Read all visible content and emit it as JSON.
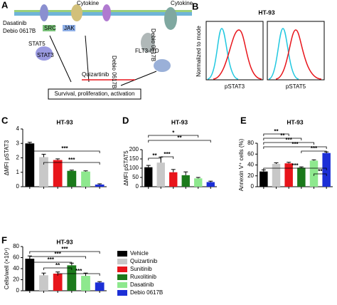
{
  "panel_a": {
    "label": "A",
    "texts": [
      "Cytokine",
      "Cytokine",
      "Dasatinib",
      "Debio 0617B",
      "SRC",
      "JAK",
      "STAT5",
      "STAT3",
      "Quizartinib",
      "Debio 0617B",
      "Debio 0617B",
      "FLT3-ITD",
      "Survival, proliferation, activation"
    ]
  },
  "panel_b": {
    "label": "B",
    "title": "HT-93",
    "ylabel": "Normalized to mode",
    "xlabels": [
      "pSTAT3",
      "pSTAT5"
    ]
  },
  "legend": [
    {
      "name": "Vehicle",
      "color": "#000000"
    },
    {
      "name": "Quizartinib",
      "color": "#c8c8c8"
    },
    {
      "name": "Sunitinib",
      "color": "#e8151b"
    },
    {
      "name": "Ruxolitinib",
      "color": "#1b7a1b"
    },
    {
      "name": "Dasatinib",
      "color": "#8ee88e"
    },
    {
      "name": "Debio 0617B",
      "color": "#1c2fd6"
    }
  ],
  "chart_data": [
    {
      "type": "bar",
      "label": "C",
      "title": "HT-93",
      "ylabel": "ΔMFI pSTAT3",
      "categories": [
        null,
        null,
        null,
        null,
        null,
        null
      ],
      "values": [
        3.0,
        2.05,
        1.85,
        1.1,
        1.05,
        0.15
      ],
      "errors": [
        0.08,
        0.2,
        0.08,
        0.05,
        0.05,
        0.05
      ],
      "ylim": [
        0,
        4
      ],
      "yticks": [
        0,
        1,
        2,
        3,
        4
      ],
      "annotations": [
        "***",
        "***"
      ]
    },
    {
      "type": "bar",
      "label": "D",
      "title": "HT-93",
      "ylabel": "ΔMFI pSTAT5",
      "categories": [
        null,
        null,
        null,
        null,
        null,
        null
      ],
      "values": [
        105,
        130,
        78,
        62,
        45,
        25
      ],
      "errors": [
        10,
        30,
        15,
        18,
        5,
        5
      ],
      "ylim": [
        0,
        200
      ],
      "yticks": [
        0,
        50,
        100,
        150,
        200
      ],
      "annotations": [
        "**",
        "***",
        "*",
        "**"
      ]
    },
    {
      "type": "bar",
      "label": "E",
      "title": "HT-93",
      "ylabel": "Annexin V⁺ cells (%)",
      "categories": [
        null,
        null,
        null,
        null,
        null,
        null
      ],
      "values": [
        28,
        42,
        43,
        35,
        48,
        62
      ],
      "errors": [
        3,
        2,
        2,
        1.5,
        1.5,
        2
      ],
      "ylim": [
        0,
        80
      ],
      "yticks": [
        0,
        20,
        40,
        60,
        80
      ],
      "annotations": [
        "**",
        "**",
        "***",
        "***",
        "***",
        "***",
        "**"
      ]
    },
    {
      "type": "bar",
      "label": "F",
      "title": "HT-93",
      "ylabel": "Cells/well (×10⁴)",
      "categories": [
        null,
        null,
        null,
        null,
        null,
        null
      ],
      "values": [
        58,
        28,
        31,
        46,
        27,
        15
      ],
      "errors": [
        5,
        4,
        3,
        4,
        5,
        1.5
      ],
      "ylim": [
        0,
        80
      ],
      "yticks": [
        0,
        20,
        40,
        60,
        80
      ],
      "annotations": [
        "***",
        "***",
        "***",
        "**",
        "***"
      ]
    }
  ]
}
